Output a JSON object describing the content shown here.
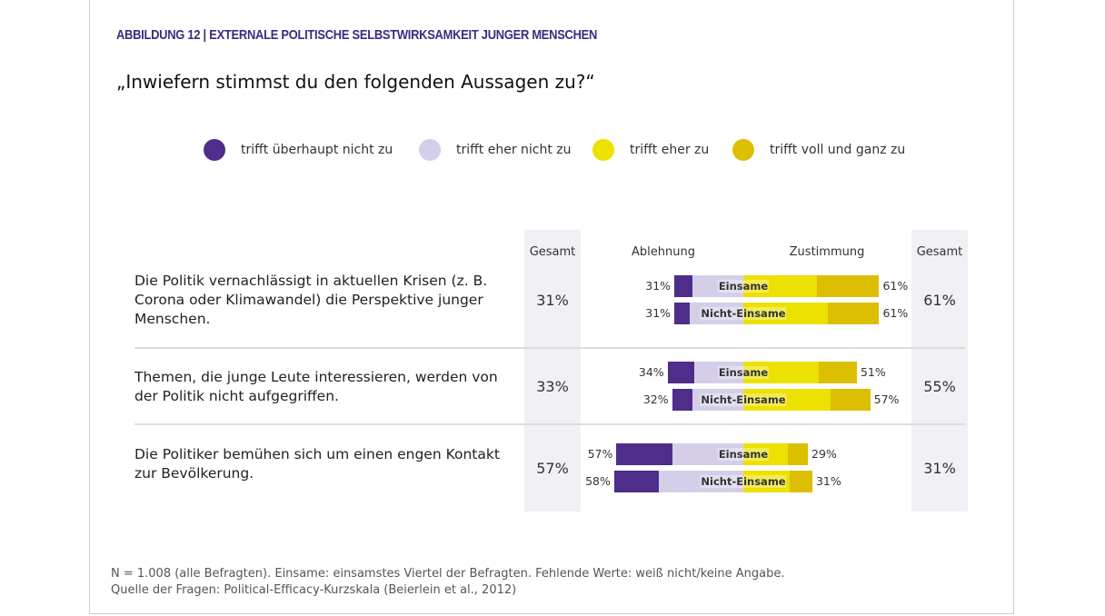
{
  "figure_label": "ABBILDUNG 12 | EXTERNALE POLITISCHE SELBSTWIRKSAMKEIT JUNGER MENSCHEN",
  "question": "„Inwiefern stimmst du den folgenden Aussagen zu?“",
  "colors": {
    "strongly_disagree": "#4f2d8a",
    "disagree": "#d5cee9",
    "agree": "#ece100",
    "strongly_agree": "#dcbf00"
  },
  "chart_data": {
    "type": "bar",
    "orientation": "horizontal-diverging-stacked",
    "legend": [
      "trifft überhaupt nicht zu",
      "trifft eher nicht zu",
      "trifft eher zu",
      "trifft voll und ganz zu"
    ],
    "legend_position": "top",
    "headers": {
      "gesamt_left": "Gesamt",
      "rejection": "Ablehnung",
      "agreement": "Zustimmung",
      "gesamt_right": "Gesamt"
    },
    "statements": [
      {
        "text": "Die Politik vernachlässigt in aktuellen Krisen (z. B. Corona oder Klimawandel) die Perspektive junger Menschen.",
        "gesamt_ablehnung": "31%",
        "gesamt_zustimmung": "61%",
        "groups": [
          {
            "label": "Einsame",
            "values": [
              8,
              23,
              33,
              28
            ],
            "ablehnung": "31%",
            "zustimmung": "61%"
          },
          {
            "label": "Nicht-Einsame",
            "values": [
              7,
              24,
              38,
              23
            ],
            "ablehnung": "31%",
            "zustimmung": "61%"
          }
        ]
      },
      {
        "text": "Themen, die junge Leute interessieren, werden von der Politik nicht aufgegriffen.",
        "gesamt_ablehnung": "33%",
        "gesamt_zustimmung": "55%",
        "groups": [
          {
            "label": "Einsame",
            "values": [
              12,
              22,
              34,
              17
            ],
            "ablehnung": "34%",
            "zustimmung": "51%"
          },
          {
            "label": "Nicht-Einsame",
            "values": [
              9,
              23,
              39,
              18
            ],
            "ablehnung": "32%",
            "zustimmung": "57%"
          }
        ]
      },
      {
        "text": "Die Politiker bemühen sich um einen engen Kontakt zur Bevölkerung.",
        "gesamt_ablehnung": "57%",
        "gesamt_zustimmung": "31%",
        "groups": [
          {
            "label": "Einsame",
            "values": [
              25,
              32,
              20,
              9
            ],
            "ablehnung": "57%",
            "zustimmung": "29%"
          },
          {
            "label": "Nicht-Einsame",
            "values": [
              20,
              38,
              21,
              10
            ],
            "ablehnung": "58%",
            "zustimmung": "31%"
          }
        ]
      }
    ]
  },
  "notes": [
    "N = 1.008 (alle Befragten). Einsame: einsamstes Viertel der Befragten. Fehlende Werte: weiß nicht/keine Angabe.",
    "Quelle der Fragen: Political-Efficacy-Kurzskala (Beierlein et al., 2012)"
  ]
}
